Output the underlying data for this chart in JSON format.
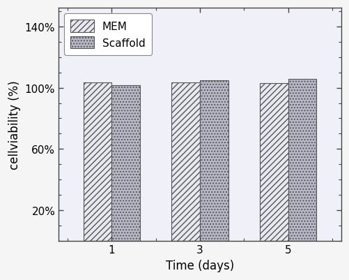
{
  "groups": [
    1,
    3,
    5
  ],
  "mem_values": [
    103.5,
    103.5,
    103.0
  ],
  "scaffold_values": [
    101.5,
    105.0,
    105.5
  ],
  "mem_facecolor": "#e8e8f0",
  "scaffold_facecolor": "#b8b8c8",
  "mem_hatch": "////",
  "scaffold_hatch": "....",
  "bar_width": 0.32,
  "ylim": [
    0,
    152
  ],
  "yticks": [
    20,
    60,
    100,
    140
  ],
  "ytick_labels": [
    "20%",
    "60%",
    "100%",
    "140%"
  ],
  "minor_yticks": [
    0,
    10,
    20,
    30,
    40,
    50,
    60,
    70,
    80,
    90,
    100,
    110,
    120,
    130,
    140,
    150
  ],
  "xlabel": "Time (days)",
  "ylabel": "cellviability (%)",
  "legend_labels": [
    "MEM",
    "Scaffold"
  ],
  "legend_loc": "upper left",
  "edgecolor": "#555555",
  "bg_color": "#f0f0f8",
  "figsize": [
    5.02,
    4.02
  ],
  "dpi": 100,
  "font_size": 11,
  "label_size": 12
}
